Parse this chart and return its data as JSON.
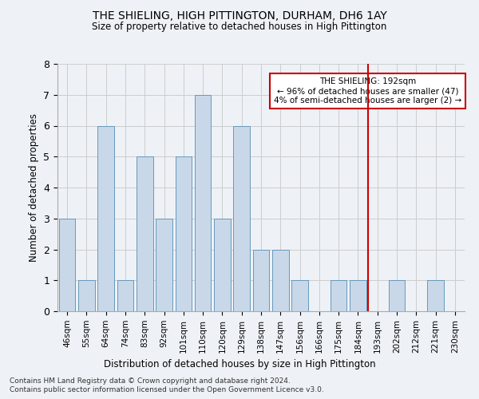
{
  "title": "THE SHIELING, HIGH PITTINGTON, DURHAM, DH6 1AY",
  "subtitle": "Size of property relative to detached houses in High Pittington",
  "xlabel": "Distribution of detached houses by size in High Pittington",
  "ylabel": "Number of detached properties",
  "footnote1": "Contains HM Land Registry data © Crown copyright and database right 2024.",
  "footnote2": "Contains public sector information licensed under the Open Government Licence v3.0.",
  "bar_labels": [
    "46sqm",
    "55sqm",
    "64sqm",
    "74sqm",
    "83sqm",
    "92sqm",
    "101sqm",
    "110sqm",
    "120sqm",
    "129sqm",
    "138sqm",
    "147sqm",
    "156sqm",
    "166sqm",
    "175sqm",
    "184sqm",
    "193sqm",
    "202sqm",
    "212sqm",
    "221sqm",
    "230sqm"
  ],
  "bar_values": [
    3,
    1,
    6,
    1,
    5,
    3,
    5,
    7,
    3,
    6,
    2,
    2,
    1,
    0,
    1,
    1,
    0,
    1,
    0,
    1,
    0
  ],
  "bar_color": "#c8d8e8",
  "bar_edge_color": "#6699bb",
  "vline_x": 15.5,
  "vline_color": "#cc0000",
  "ylim": [
    0,
    8
  ],
  "yticks": [
    0,
    1,
    2,
    3,
    4,
    5,
    6,
    7,
    8
  ],
  "annotation_text": "THE SHIELING: 192sqm\n← 96% of detached houses are smaller (47)\n4% of semi-detached houses are larger (2) →",
  "annotation_box_color": "#cc0000",
  "grid_color": "#cccccc",
  "bg_color": "#eef2f7"
}
